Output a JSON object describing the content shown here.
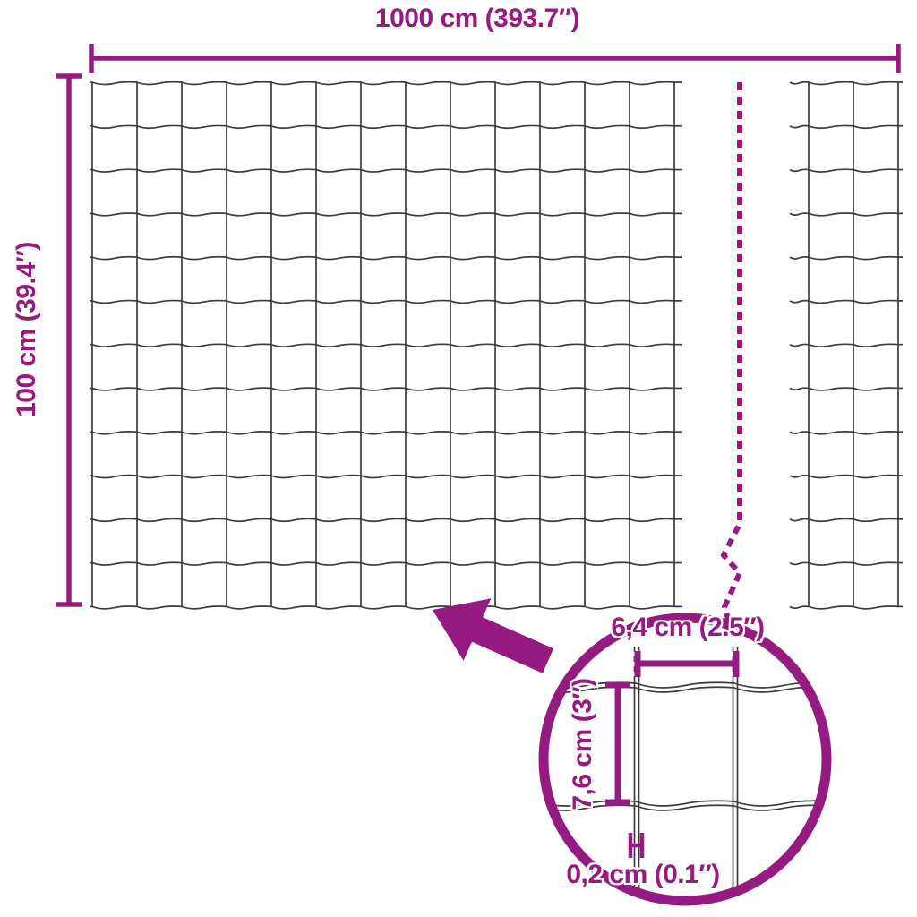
{
  "colors": {
    "accent": "#951b81",
    "wire": "#3c3c3c",
    "background": "#ffffff"
  },
  "labels": {
    "total_width": "1000 cm (393.7″)",
    "total_height": "100 cm (39.4″)",
    "mesh_opening_width": "6,4 cm (2.5″)",
    "mesh_opening_height": "7,6 cm (3″)",
    "wire_thickness": "0,2 cm (0.1″)"
  }
}
